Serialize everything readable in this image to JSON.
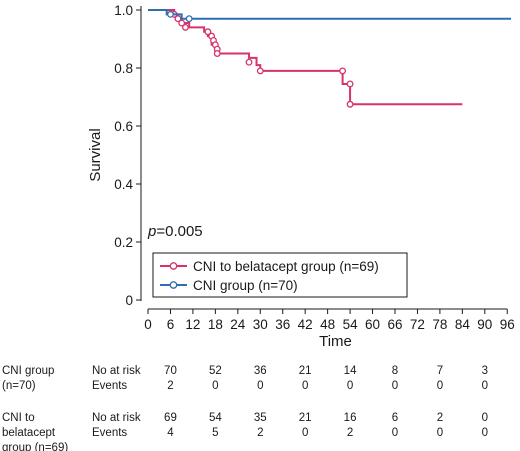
{
  "chart_data": {
    "type": "line",
    "subtype": "kaplan-meier",
    "xlabel": "Time",
    "ylabel": "Survival",
    "xlim": [
      0,
      97
    ],
    "ylim": [
      0,
      1.0
    ],
    "x_ticks": [
      0,
      6,
      12,
      18,
      24,
      30,
      36,
      42,
      48,
      54,
      60,
      66,
      72,
      78,
      84,
      90,
      96
    ],
    "y_ticks": [
      0,
      0.2,
      0.4,
      0.6,
      0.8,
      1.0
    ],
    "y_tick_labels": [
      "0",
      "0.2",
      "0.4",
      "0.6",
      "0.8",
      "1.0"
    ],
    "grid": false,
    "annotation": {
      "p_label": "p",
      "p_value": "=0.005"
    },
    "legend_position": "lower-center",
    "series": [
      {
        "name": "CNI to belatacept group (n=69)",
        "color": "#d6336c",
        "steps": [
          [
            0,
            1.0
          ],
          [
            7,
            0.985
          ],
          [
            8,
            0.97
          ],
          [
            9,
            0.955
          ],
          [
            11,
            0.94
          ],
          [
            15,
            0.925
          ],
          [
            16,
            0.91
          ],
          [
            17,
            0.88
          ],
          [
            18,
            0.85
          ],
          [
            27,
            0.835
          ],
          [
            29,
            0.81
          ],
          [
            30,
            0.79
          ],
          [
            52,
            0.745
          ],
          [
            54,
            0.675
          ],
          [
            84,
            0.675
          ]
        ],
        "censored": [
          [
            7,
            0.985
          ],
          [
            8,
            0.97
          ],
          [
            9,
            0.955
          ],
          [
            10,
            0.94
          ],
          [
            16,
            0.925
          ],
          [
            17,
            0.91
          ],
          [
            17.5,
            0.895
          ],
          [
            18,
            0.88
          ],
          [
            18.5,
            0.865
          ],
          [
            18.5,
            0.85
          ],
          [
            27,
            0.82
          ],
          [
            30,
            0.79
          ],
          [
            52,
            0.79
          ],
          [
            54,
            0.745
          ],
          [
            54,
            0.675
          ]
        ]
      },
      {
        "name": "CNI group (n=70)",
        "color": "#2f6fb0",
        "steps": [
          [
            0,
            1.0
          ],
          [
            5,
            0.985
          ],
          [
            9,
            0.97
          ],
          [
            97,
            0.97
          ]
        ],
        "censored": [
          [
            6,
            0.985
          ],
          [
            11,
            0.97
          ]
        ]
      }
    ]
  },
  "risk_table": {
    "x_ticks": [
      6,
      18,
      30,
      42,
      54,
      66,
      78,
      90
    ],
    "groups": [
      {
        "label_lines": [
          "CNI group",
          "(n=70)"
        ],
        "rows": [
          {
            "label": "No at risk",
            "values": [
              "70",
              "52",
              "36",
              "21",
              "14",
              "8",
              "7",
              "3"
            ]
          },
          {
            "label": "Events",
            "values": [
              "2",
              "0",
              "0",
              "0",
              "0",
              "0",
              "0",
              "0"
            ]
          }
        ]
      },
      {
        "label_lines": [
          "CNI to",
          "belatacept",
          "group (n=69)"
        ],
        "rows": [
          {
            "label": "No at risk",
            "values": [
              "69",
              "54",
              "35",
              "21",
              "16",
              "6",
              "2",
              "0"
            ]
          },
          {
            "label": "Events",
            "values": [
              "4",
              "5",
              "2",
              "0",
              "2",
              "0",
              "0",
              "0"
            ]
          }
        ]
      }
    ]
  }
}
